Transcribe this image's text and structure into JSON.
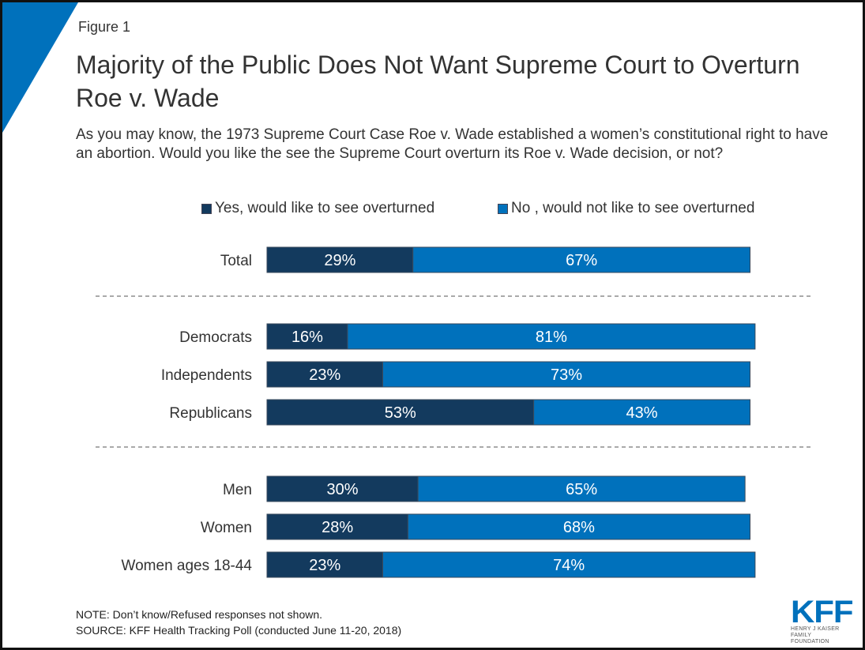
{
  "figure_label": "Figure 1",
  "title": "Majority of the Public Does Not Want Supreme Court to Overturn Roe v. Wade",
  "subtitle": "As you may know, the 1973 Supreme Court Case Roe v. Wade established a women’s constitutional right to have an abortion. Would you like the see the Supreme Court overturn its Roe v. Wade decision, or not?",
  "legend": [
    {
      "label": "Yes, would like to see overturned",
      "color": "#133a5e"
    },
    {
      "label": "No , would not like to see overturned",
      "color": "#0071bc"
    }
  ],
  "notes": {
    "note": "NOTE: Don’t know/Refused responses not shown.",
    "source": "SOURCE: KFF Health Tracking Poll (conducted June 11-20, 2018)"
  },
  "logo": {
    "text": "KFF",
    "line1": "HENRY J KAISER",
    "line2": "FAMILY FOUNDATION"
  },
  "chart_data": {
    "type": "bar",
    "orientation": "horizontal-stacked",
    "categories": [
      "Total",
      "Democrats",
      "Independents",
      "Republicans",
      "Men",
      "Women",
      "Women ages 18-44"
    ],
    "groups": [
      [
        0
      ],
      [
        1,
        2,
        3
      ],
      [
        4,
        5,
        6
      ]
    ],
    "series": [
      {
        "name": "Yes, would like to see overturned",
        "color": "#133a5e",
        "values": [
          29,
          16,
          23,
          53,
          30,
          28,
          23
        ]
      },
      {
        "name": "No , would not like to see overturned",
        "color": "#0071bc",
        "values": [
          67,
          81,
          73,
          43,
          65,
          68,
          74
        ]
      }
    ],
    "value_suffix": "%",
    "legend_position": "top",
    "grid": false,
    "xlim": [
      0,
      100
    ]
  }
}
